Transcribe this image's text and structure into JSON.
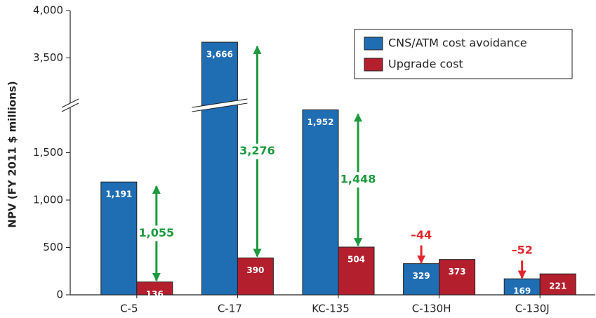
{
  "chart_data": {
    "type": "bar",
    "y_label": "NPV (FY 2011 $ millions)",
    "categories": [
      "C-5",
      "C-17",
      "KC-135",
      "C-130H",
      "C-130J"
    ],
    "series": [
      {
        "name": "CNS/ATM cost avoidance",
        "color": "#1f6db3",
        "values": [
          1191,
          3666,
          1952,
          329,
          169
        ],
        "value_labels": [
          "1,191",
          "3,666",
          "1,952",
          "329",
          "169"
        ]
      },
      {
        "name": "Upgrade cost",
        "color": "#b41f2e",
        "values": [
          136,
          390,
          504,
          373,
          221
        ],
        "value_labels": [
          "136",
          "390",
          "504",
          "373",
          "221"
        ]
      }
    ],
    "differences": {
      "values": [
        1055,
        3276,
        1448,
        -44,
        -52
      ],
      "value_labels": [
        "1,055",
        "3,276",
        "1,448",
        "–44",
        "–52"
      ],
      "positive_color": "#1d9a3e",
      "negative_color": "#e4252c"
    },
    "ylim": [
      0,
      4000
    ],
    "axis_break": [
      2000,
      3000
    ],
    "yticks": [
      0,
      500,
      {
        "value": 1000,
        "label": "1,000"
      },
      {
        "value": 1500,
        "label": "1,500"
      },
      {
        "value": 3500,
        "label": "3,500"
      },
      {
        "value": 4000,
        "label": "4,000"
      }
    ],
    "legend": "top-right"
  }
}
